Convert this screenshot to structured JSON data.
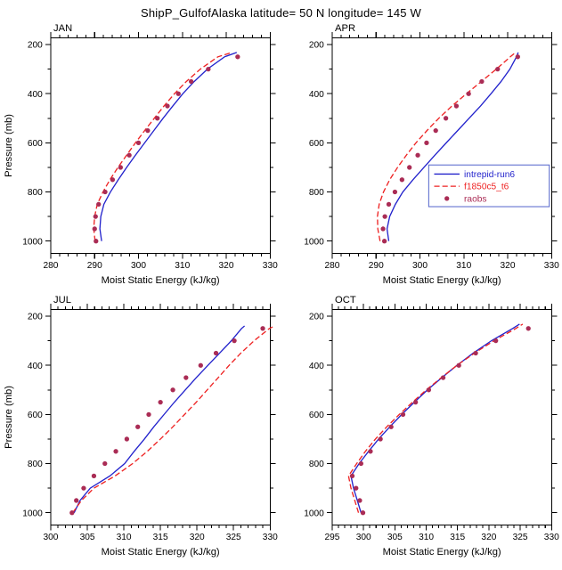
{
  "title": "ShipP_GulfofAlaska  latitude= 50 N longitude= 145 W",
  "colors": {
    "line_intrepid": "#2222cc",
    "line_f1850": "#ee2222",
    "obs_dots": "#aa2c55",
    "legend_border": "#5566cc",
    "frame": "#000000"
  },
  "legend": {
    "entries": [
      "intrepid-run6",
      "f1850c5_t6",
      "raobs"
    ],
    "location": "APR panel, right middle"
  },
  "chart_data": [
    {
      "type": "line",
      "panel": "JAN",
      "xlabel": "Moist Static Energy (kJ/kg)",
      "ylabel": "Pressure (mb)",
      "xlim": [
        280,
        330
      ],
      "xticks": [
        280,
        290,
        300,
        310,
        320,
        330
      ],
      "x_minor_step": 2,
      "ylim": [
        1000,
        200
      ],
      "yticks": [
        200,
        400,
        600,
        800,
        1000
      ],
      "y_minor": [
        300,
        500,
        700,
        900
      ],
      "show_ylabel": true,
      "legend": false,
      "series": [
        {
          "name": "intrepid-run6",
          "style": "solid",
          "color_key": "line_intrepid",
          "levels": [
            1000,
            950,
            900,
            850,
            800,
            750,
            700,
            650,
            600,
            550,
            500,
            450,
            400,
            350,
            300,
            250,
            232
          ],
          "values": [
            291.6,
            291.2,
            291.4,
            292.1,
            293.6,
            295.4,
            297.3,
            299.3,
            301.4,
            303.5,
            305.6,
            307.8,
            310.1,
            312.7,
            315.7,
            319.6,
            322.4
          ]
        },
        {
          "name": "f1850c5_t6",
          "style": "dashed",
          "color_key": "line_f1850",
          "levels": [
            1000,
            950,
            900,
            850,
            800,
            750,
            700,
            650,
            600,
            550,
            500,
            450,
            400,
            350,
            300,
            250,
            232
          ],
          "values": [
            290.1,
            289.8,
            290.0,
            290.6,
            291.9,
            293.5,
            295.3,
            297.3,
            299.3,
            301.4,
            303.6,
            305.8,
            308.2,
            310.9,
            314.1,
            318.1,
            321.3
          ]
        },
        {
          "name": "raobs",
          "style": "dots",
          "color_key": "obs_dots",
          "levels": [
            1000,
            950,
            900,
            850,
            800,
            750,
            700,
            650,
            600,
            550,
            500,
            450,
            400,
            350,
            300,
            250
          ],
          "values": [
            290.3,
            290.0,
            290.2,
            290.9,
            292.4,
            294.1,
            295.9,
            297.9,
            300.0,
            302.1,
            304.3,
            306.6,
            309.1,
            312.0,
            315.9,
            322.6
          ]
        }
      ]
    },
    {
      "type": "line",
      "panel": "APR",
      "xlabel": "Moist Static Energy (kJ/kg)",
      "ylabel": "Pressure (mb)",
      "xlim": [
        280,
        330
      ],
      "xticks": [
        280,
        290,
        300,
        310,
        320,
        330
      ],
      "x_minor_step": 2,
      "ylim": [
        1000,
        200
      ],
      "yticks": [
        200,
        400,
        600,
        800,
        1000
      ],
      "y_minor": [
        300,
        500,
        700,
        900
      ],
      "show_ylabel": false,
      "legend": true,
      "series": [
        {
          "name": "intrepid-run6",
          "style": "solid",
          "color_key": "line_intrepid",
          "levels": [
            1000,
            950,
            900,
            850,
            800,
            750,
            700,
            650,
            600,
            550,
            500,
            450,
            400,
            350,
            300,
            250,
            232
          ],
          "values": [
            292.9,
            292.5,
            293.1,
            294.4,
            296.1,
            298.4,
            300.9,
            303.4,
            306.0,
            308.6,
            311.2,
            313.8,
            316.2,
            318.5,
            320.5,
            322.0,
            322.4
          ]
        },
        {
          "name": "f1850c5_t6",
          "style": "dashed",
          "color_key": "line_f1850",
          "levels": [
            1000,
            950,
            900,
            850,
            800,
            750,
            700,
            650,
            600,
            550,
            500,
            450,
            400,
            350,
            300,
            250,
            232
          ],
          "values": [
            290.9,
            290.4,
            290.3,
            290.7,
            291.7,
            293.1,
            294.9,
            296.9,
            299.1,
            301.6,
            304.3,
            307.3,
            310.6,
            314.0,
            317.4,
            320.6,
            321.8
          ]
        },
        {
          "name": "raobs",
          "style": "dots",
          "color_key": "obs_dots",
          "levels": [
            1000,
            950,
            900,
            850,
            800,
            750,
            700,
            650,
            600,
            550,
            500,
            450,
            400,
            350,
            300,
            250
          ],
          "values": [
            291.9,
            291.6,
            292.0,
            292.9,
            294.3,
            295.9,
            297.6,
            299.5,
            301.5,
            303.6,
            305.9,
            308.3,
            311.1,
            314.1,
            317.7,
            322.3
          ]
        }
      ]
    },
    {
      "type": "line",
      "panel": "JUL",
      "xlabel": "Moist Static Energy (kJ/kg)",
      "ylabel": "Pressure (mb)",
      "xlim": [
        300,
        330
      ],
      "xticks": [
        300,
        305,
        310,
        315,
        320,
        325,
        330
      ],
      "x_minor_step": 1,
      "ylim": [
        1000,
        200
      ],
      "yticks": [
        200,
        400,
        600,
        800,
        1000
      ],
      "y_minor": [
        300,
        500,
        700,
        900
      ],
      "show_ylabel": true,
      "legend": false,
      "series": [
        {
          "name": "intrepid-run6",
          "style": "solid",
          "color_key": "line_intrepid",
          "levels": [
            1000,
            950,
            900,
            850,
            800,
            750,
            700,
            650,
            600,
            550,
            500,
            450,
            400,
            350,
            300,
            250,
            240
          ],
          "values": [
            303.2,
            304.0,
            305.4,
            308.1,
            310.1,
            311.4,
            312.8,
            314.1,
            315.5,
            316.9,
            318.4,
            319.9,
            321.5,
            323.1,
            324.7,
            326.1,
            326.5
          ]
        },
        {
          "name": "f1850c5_t6",
          "style": "dashed",
          "color_key": "line_f1850",
          "levels": [
            1000,
            950,
            900,
            850,
            800,
            750,
            700,
            650,
            600,
            550,
            500,
            450,
            400,
            350,
            300,
            250,
            240
          ],
          "values": [
            303.0,
            304.2,
            305.9,
            308.8,
            311.2,
            313.2,
            315.0,
            316.7,
            318.3,
            319.9,
            321.4,
            322.9,
            324.4,
            326.0,
            327.8,
            329.9,
            330.6
          ]
        },
        {
          "name": "raobs",
          "style": "dots",
          "color_key": "obs_dots",
          "levels": [
            1000,
            950,
            900,
            850,
            800,
            750,
            700,
            650,
            600,
            550,
            500,
            450,
            400,
            350,
            300,
            250
          ],
          "values": [
            302.9,
            303.5,
            304.5,
            305.9,
            307.4,
            308.9,
            310.4,
            311.9,
            313.4,
            315.0,
            316.7,
            318.5,
            320.5,
            322.6,
            325.1,
            329.0
          ]
        }
      ]
    },
    {
      "type": "line",
      "panel": "OCT",
      "xlabel": "Moist Static Energy (kJ/kg)",
      "ylabel": "Pressure (mb)",
      "xlim": [
        295,
        330
      ],
      "xticks": [
        295,
        300,
        305,
        310,
        315,
        320,
        325,
        330
      ],
      "x_minor_step": 1,
      "ylim": [
        1000,
        200
      ],
      "yticks": [
        200,
        400,
        600,
        800,
        1000
      ],
      "y_minor": [
        300,
        500,
        700,
        900
      ],
      "show_ylabel": false,
      "legend": false,
      "series": [
        {
          "name": "intrepid-run6",
          "style": "solid",
          "color_key": "line_intrepid",
          "levels": [
            1000,
            950,
            900,
            850,
            800,
            750,
            700,
            650,
            600,
            550,
            500,
            450,
            400,
            350,
            300,
            250,
            232
          ],
          "values": [
            299.6,
            299.0,
            298.4,
            298.0,
            299.3,
            300.8,
            302.4,
            304.2,
            306.1,
            308.1,
            310.2,
            312.5,
            314.9,
            317.5,
            320.4,
            323.8,
            324.9
          ]
        },
        {
          "name": "f1850c5_t6",
          "style": "dashed",
          "color_key": "line_f1850",
          "levels": [
            1000,
            950,
            900,
            850,
            800,
            750,
            700,
            650,
            600,
            550,
            500,
            450,
            400,
            350,
            300,
            250,
            232
          ],
          "values": [
            299.2,
            298.6,
            298.0,
            297.6,
            298.9,
            300.3,
            301.9,
            303.7,
            305.7,
            307.8,
            310.0,
            312.4,
            314.9,
            317.7,
            320.8,
            324.3,
            325.4
          ]
        },
        {
          "name": "raobs",
          "style": "dots",
          "color_key": "obs_dots",
          "levels": [
            1000,
            950,
            900,
            850,
            800,
            750,
            700,
            650,
            600,
            550,
            500,
            450,
            400,
            350,
            300,
            250
          ],
          "values": [
            299.9,
            299.4,
            298.8,
            298.2,
            299.6,
            301.1,
            302.7,
            304.4,
            306.3,
            308.3,
            310.4,
            312.7,
            315.2,
            317.9,
            321.1,
            326.3
          ]
        }
      ]
    }
  ]
}
